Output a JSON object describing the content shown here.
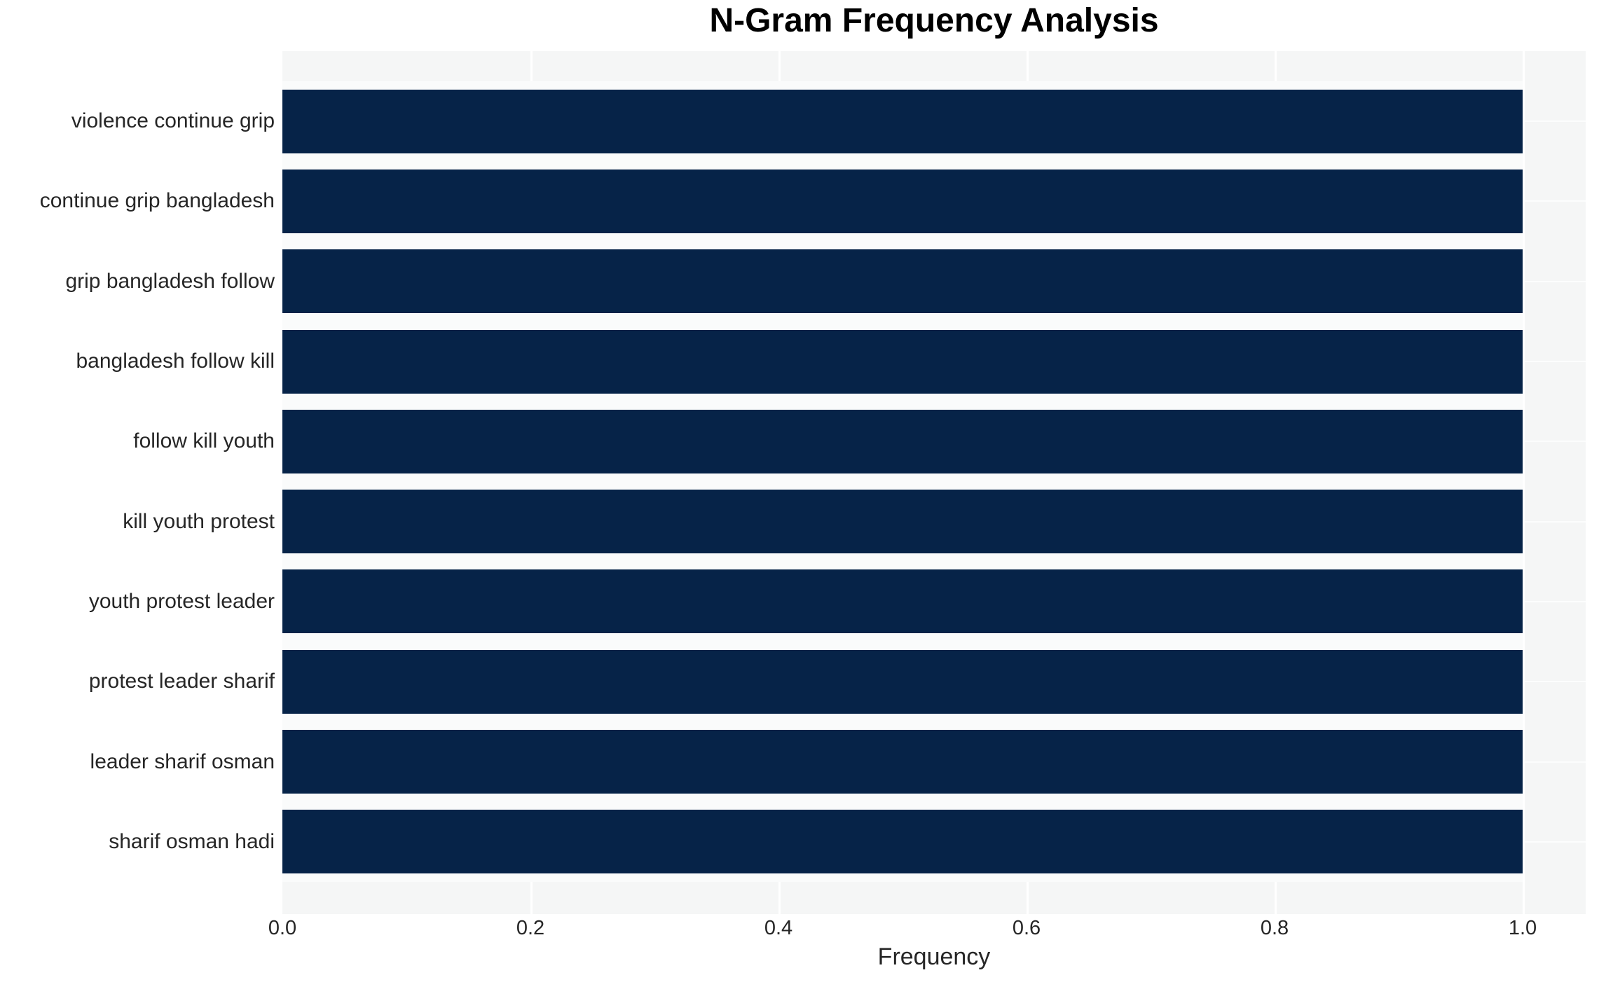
{
  "chart_data": {
    "type": "bar",
    "orientation": "horizontal",
    "title": "N-Gram Frequency Analysis",
    "xlabel": "Frequency",
    "ylabel": "",
    "categories": [
      "violence continue grip",
      "continue grip bangladesh",
      "grip bangladesh follow",
      "bangladesh follow kill",
      "follow kill youth",
      "kill youth protest",
      "youth protest leader",
      "protest leader sharif",
      "leader sharif osman",
      "sharif osman hadi"
    ],
    "values": [
      1.0,
      1.0,
      1.0,
      1.0,
      1.0,
      1.0,
      1.0,
      1.0,
      1.0,
      1.0
    ],
    "x_ticks": [
      0.0,
      0.2,
      0.4,
      0.6,
      0.8,
      1.0
    ],
    "x_tick_labels": [
      "0.0",
      "0.2",
      "0.4",
      "0.6",
      "0.8",
      "1.0"
    ],
    "xlim": [
      0.0,
      1.05
    ],
    "grid": "white vertical gridlines at x ticks, white hairlines at row centers, on light-gray plot background",
    "legend": "none",
    "colors": {
      "bar": "#062348",
      "plot_background": "#f5f6f6",
      "row_band": "#fafbfb",
      "gridline": "#ffffff",
      "hairline": "#fcfdfd",
      "text": "#262626",
      "title_text": "#000000",
      "figure_background": "#ffffff"
    }
  }
}
